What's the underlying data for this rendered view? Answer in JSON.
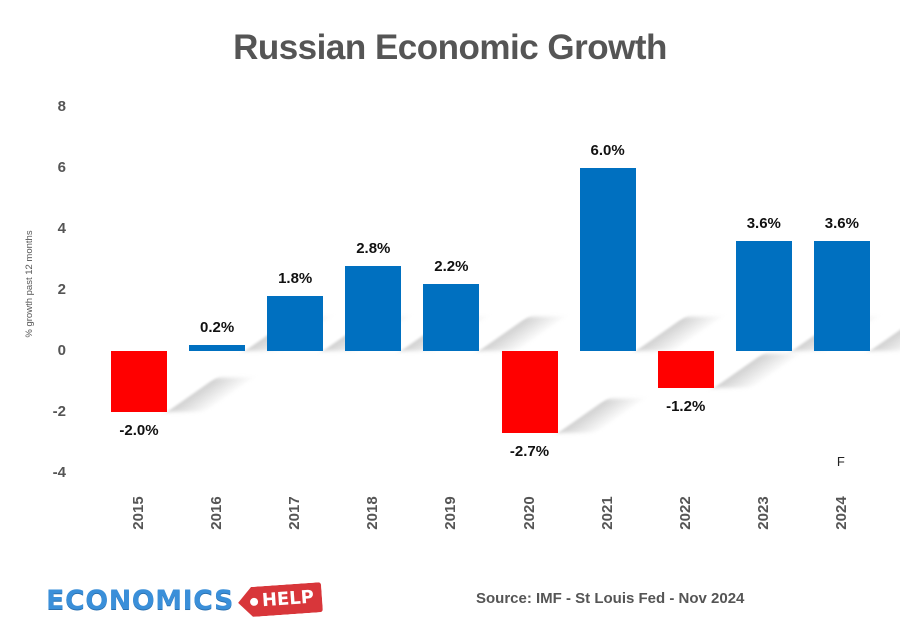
{
  "chart_data": {
    "type": "bar",
    "title": "Russian Economic Growth",
    "xlabel": "",
    "ylabel": "% growth past 12 months",
    "categories": [
      "2015",
      "2016",
      "2017",
      "2018",
      "2019",
      "2020",
      "2021",
      "2022",
      "2023",
      "2024"
    ],
    "values": [
      -2.0,
      0.2,
      1.8,
      2.8,
      2.2,
      -2.7,
      6.0,
      -1.2,
      3.6,
      3.6
    ],
    "data_labels": [
      "-2.0%",
      "0.2%",
      "1.8%",
      "2.8%",
      "2.2%",
      "-2.7%",
      "6.0%",
      "-1.2%",
      "3.6%",
      "3.6%"
    ],
    "ylim": [
      -4,
      8
    ],
    "yticks": [
      8,
      6,
      4,
      2,
      0,
      -2,
      -4
    ],
    "grid": false,
    "legend": null,
    "annotations": [
      {
        "category": "2024",
        "text": "F",
        "meaning": "forecast"
      }
    ],
    "colors": {
      "positive": "#0070c0",
      "negative": "#ff0000"
    }
  },
  "footer": {
    "logo_main": "ECONOMICS",
    "logo_tag": "HELP",
    "source": "Source: IMF - St Louis Fed - Nov 2024"
  }
}
